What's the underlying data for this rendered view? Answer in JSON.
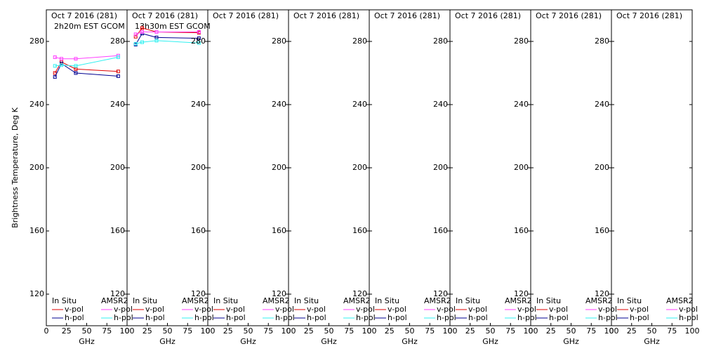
{
  "chart_data": [
    {
      "type": "line",
      "title": "Oct 7 2016 (281)",
      "subtitle": "2h20m EST GCOM",
      "y_label": "Brightness Temperature, Deg K",
      "x_label": "GHz",
      "xlim": [
        0,
        100
      ],
      "xticks": [
        0,
        25,
        50,
        75,
        100
      ],
      "ylim": [
        100,
        300
      ],
      "yticks": [
        120,
        160,
        200,
        240,
        280
      ],
      "legend_titles": [
        "In Situ",
        "AMSR2"
      ],
      "x": [
        10.65,
        18.7,
        36.5,
        89
      ],
      "series": [
        {
          "name": "v-pol",
          "color": "#e00000",
          "values": [
            260,
            267,
            262.5,
            261
          ]
        },
        {
          "name": "h-pol",
          "color": "#000090",
          "values": [
            257.5,
            266,
            260,
            258
          ]
        },
        {
          "name": "v-pol",
          "color": "#ff40ff",
          "values": [
            270,
            269,
            269,
            271
          ]
        },
        {
          "name": "h-pol",
          "color": "#30f0f0",
          "values": [
            264.5,
            265,
            264.5,
            270
          ]
        }
      ]
    },
    {
      "type": "line",
      "title": "Oct 7 2016 (281)",
      "subtitle": "13h30m EST GCOM",
      "x_label": "GHz",
      "xlim": [
        0,
        100
      ],
      "xticks": [
        0,
        25,
        50,
        75,
        100
      ],
      "ylim": [
        100,
        300
      ],
      "yticks": [
        120,
        160,
        200,
        240,
        280
      ],
      "legend_titles": [
        "In Situ",
        "AMSR2"
      ],
      "x": [
        10.65,
        18.7,
        36.5,
        89
      ],
      "series": [
        {
          "name": "v-pol",
          "color": "#e00000",
          "values": [
            283,
            288.5,
            286,
            285.5
          ]
        },
        {
          "name": "h-pol",
          "color": "#000090",
          "values": [
            278,
            285,
            282.5,
            282
          ]
        },
        {
          "name": "v-pol",
          "color": "#ff40ff",
          "values": [
            284.5,
            286,
            286,
            286
          ]
        },
        {
          "name": "h-pol",
          "color": "#30f0f0",
          "values": [
            278.5,
            279.5,
            280.5,
            279
          ]
        }
      ]
    },
    {
      "type": "line",
      "title": "Oct 7 2016 (281)",
      "x_label": "GHz",
      "xlim": [
        0,
        100
      ],
      "xticks": [
        0,
        25,
        50,
        75,
        100
      ],
      "ylim": [
        100,
        300
      ],
      "yticks": [
        120,
        160,
        200,
        240,
        280
      ],
      "legend_titles": [
        "In Situ",
        "AMSR2"
      ],
      "x": [],
      "series": [
        {
          "name": "v-pol",
          "color": "#e00000",
          "values": []
        },
        {
          "name": "h-pol",
          "color": "#000090",
          "values": []
        },
        {
          "name": "v-pol",
          "color": "#ff40ff",
          "values": []
        },
        {
          "name": "h-pol",
          "color": "#30f0f0",
          "values": []
        }
      ]
    },
    {
      "type": "line",
      "title": "Oct 7 2016 (281)",
      "x_label": "GHz",
      "xlim": [
        0,
        100
      ],
      "xticks": [
        0,
        25,
        50,
        75,
        100
      ],
      "ylim": [
        100,
        300
      ],
      "yticks": [
        120,
        160,
        200,
        240,
        280
      ],
      "legend_titles": [
        "In Situ",
        "AMSR2"
      ],
      "x": [],
      "series": [
        {
          "name": "v-pol",
          "color": "#e00000",
          "values": []
        },
        {
          "name": "h-pol",
          "color": "#000090",
          "values": []
        },
        {
          "name": "v-pol",
          "color": "#ff40ff",
          "values": []
        },
        {
          "name": "h-pol",
          "color": "#30f0f0",
          "values": []
        }
      ]
    },
    {
      "type": "line",
      "title": "Oct 7 2016 (281)",
      "x_label": "GHz",
      "xlim": [
        0,
        100
      ],
      "xticks": [
        0,
        25,
        50,
        75,
        100
      ],
      "ylim": [
        100,
        300
      ],
      "yticks": [
        120,
        160,
        200,
        240,
        280
      ],
      "legend_titles": [
        "In Situ",
        "AMSR2"
      ],
      "x": [],
      "series": [
        {
          "name": "v-pol",
          "color": "#e00000",
          "values": []
        },
        {
          "name": "h-pol",
          "color": "#000090",
          "values": []
        },
        {
          "name": "v-pol",
          "color": "#ff40ff",
          "values": []
        },
        {
          "name": "h-pol",
          "color": "#30f0f0",
          "values": []
        }
      ]
    },
    {
      "type": "line",
      "title": "Oct 7 2016 (281)",
      "x_label": "GHz",
      "xlim": [
        0,
        100
      ],
      "xticks": [
        0,
        25,
        50,
        75,
        100
      ],
      "ylim": [
        100,
        300
      ],
      "yticks": [
        120,
        160,
        200,
        240,
        280
      ],
      "legend_titles": [
        "In Situ",
        "AMSR2"
      ],
      "x": [],
      "series": [
        {
          "name": "v-pol",
          "color": "#e00000",
          "values": []
        },
        {
          "name": "h-pol",
          "color": "#000090",
          "values": []
        },
        {
          "name": "v-pol",
          "color": "#ff40ff",
          "values": []
        },
        {
          "name": "h-pol",
          "color": "#30f0f0",
          "values": []
        }
      ]
    },
    {
      "type": "line",
      "title": "Oct 7 2016 (281)",
      "x_label": "GHz",
      "xlim": [
        0,
        100
      ],
      "xticks": [
        0,
        25,
        50,
        75,
        100
      ],
      "ylim": [
        100,
        300
      ],
      "yticks": [
        120,
        160,
        200,
        240,
        280
      ],
      "legend_titles": [
        "In Situ",
        "AMSR2"
      ],
      "x": [],
      "series": [
        {
          "name": "v-pol",
          "color": "#e00000",
          "values": []
        },
        {
          "name": "h-pol",
          "color": "#000090",
          "values": []
        },
        {
          "name": "v-pol",
          "color": "#ff40ff",
          "values": []
        },
        {
          "name": "h-pol",
          "color": "#30f0f0",
          "values": []
        }
      ]
    },
    {
      "type": "line",
      "title": "Oct 7 2016 (281)",
      "x_label": "GHz",
      "xlim": [
        0,
        100
      ],
      "xticks": [
        0,
        25,
        50,
        75,
        100
      ],
      "ylim": [
        100,
        300
      ],
      "yticks": [
        120,
        160,
        200,
        240,
        280
      ],
      "legend_titles": [
        "In Situ",
        "AMSR2"
      ],
      "x": [],
      "series": [
        {
          "name": "v-pol",
          "color": "#e00000",
          "values": []
        },
        {
          "name": "h-pol",
          "color": "#000090",
          "values": []
        },
        {
          "name": "v-pol",
          "color": "#ff40ff",
          "values": []
        },
        {
          "name": "h-pol",
          "color": "#30f0f0",
          "values": []
        }
      ]
    }
  ]
}
